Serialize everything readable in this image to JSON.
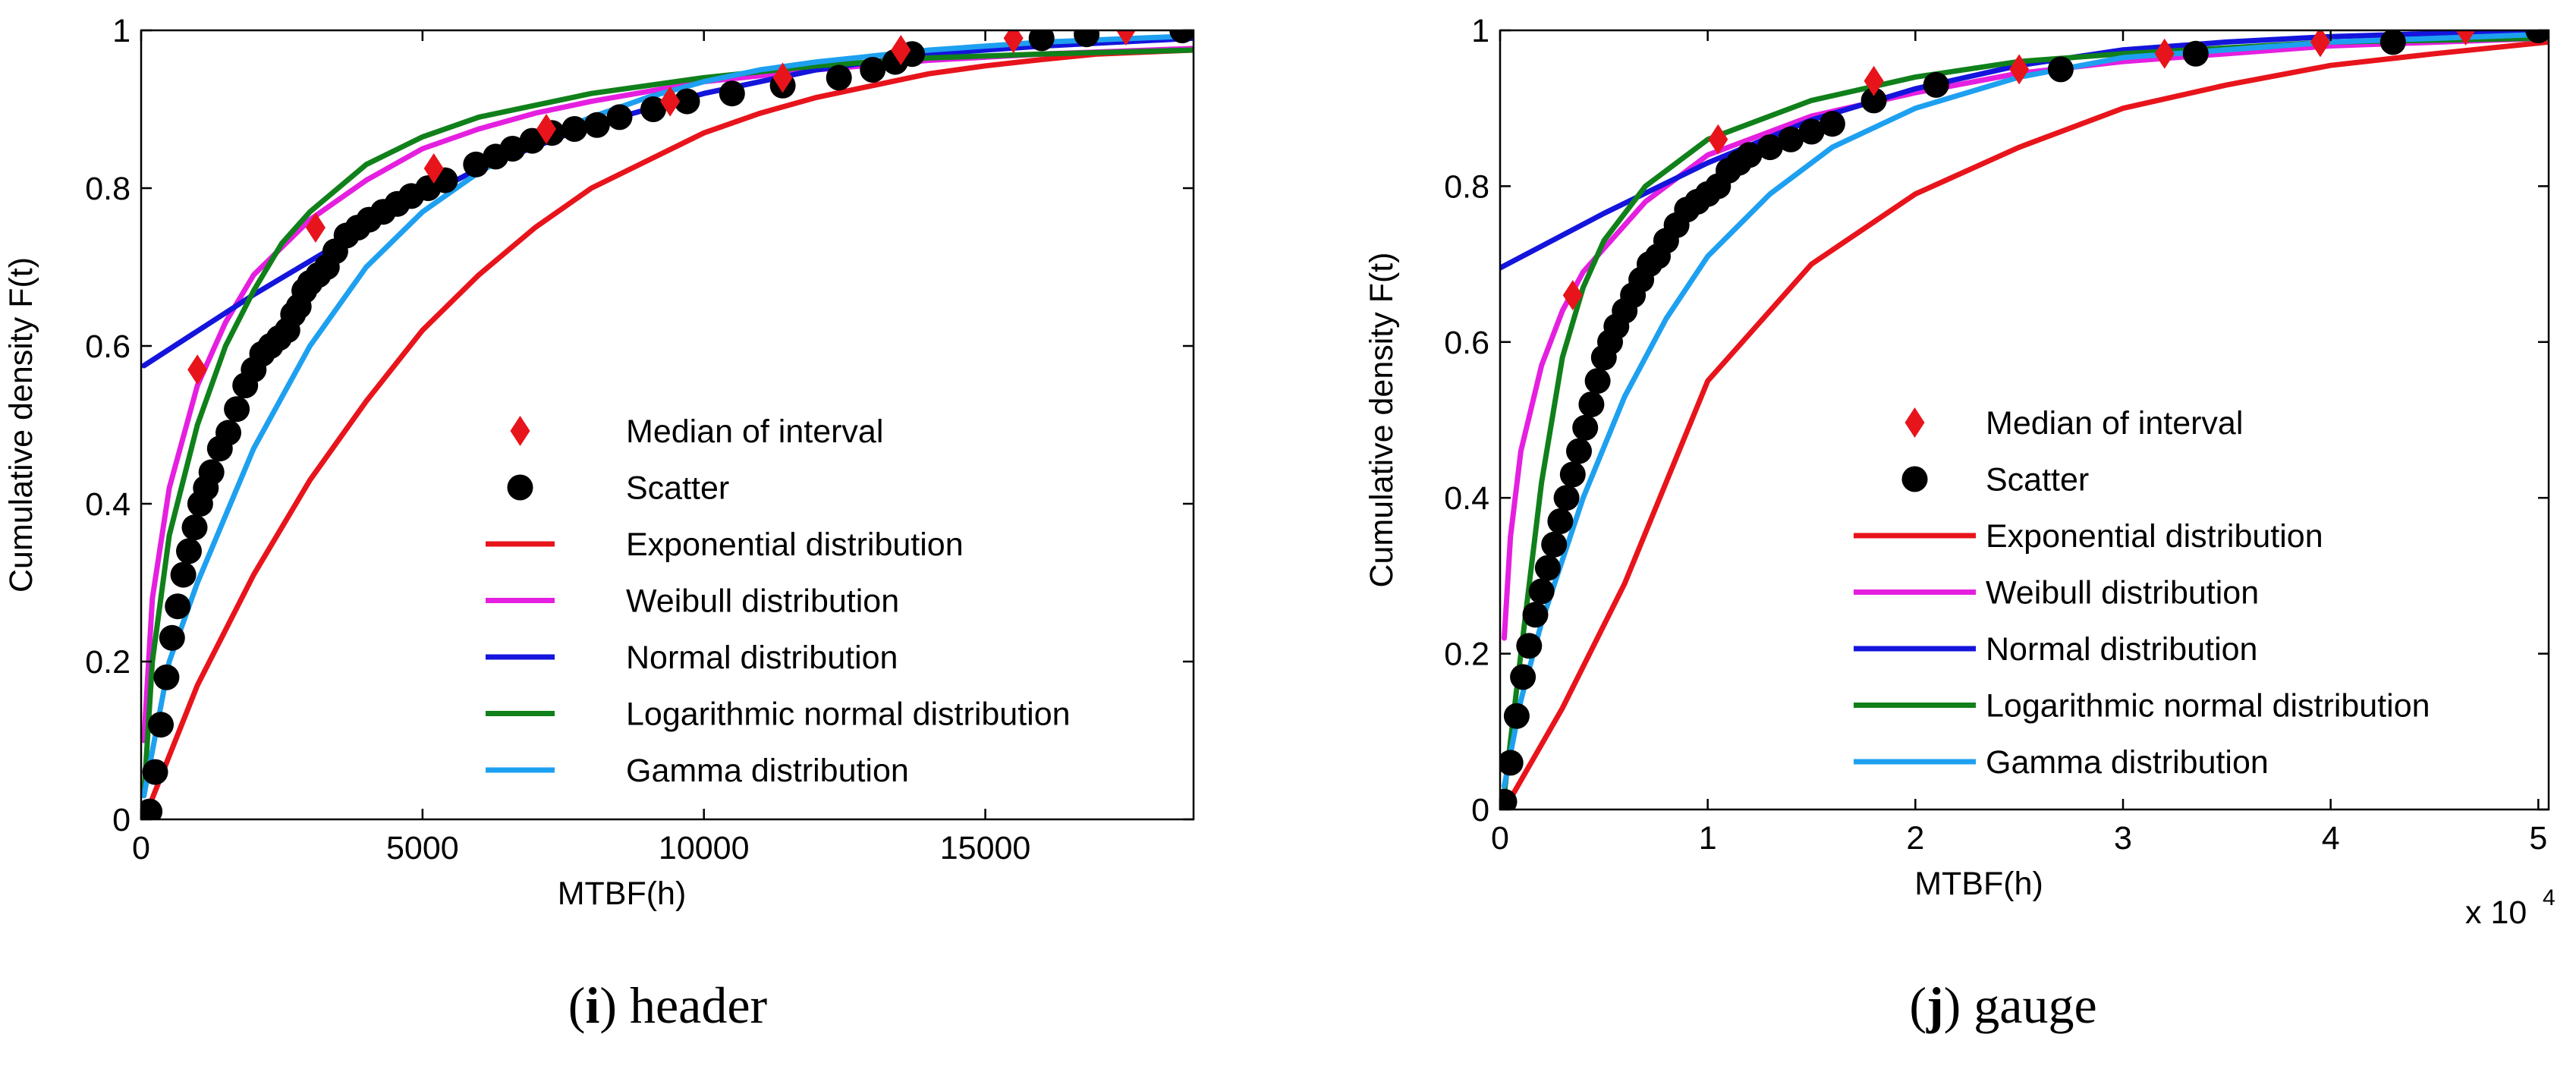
{
  "chart_data": [
    {
      "type": "line",
      "panel_label": "i",
      "panel_name": "header",
      "xlabel": "MTBF(h)",
      "ylabel": "Cumulative density F(t)",
      "x_exponent": "",
      "xlim": [
        0,
        18700
      ],
      "ylim": [
        0,
        1
      ],
      "xticks": [
        0,
        5000,
        10000,
        15000
      ],
      "xtick_labels": [
        "0",
        "5000",
        "10000",
        "15000"
      ],
      "yticks": [
        0,
        0.2,
        0.4,
        0.6,
        0.8,
        1
      ],
      "ytick_labels": [
        "0",
        "0.2",
        "0.4",
        "0.6",
        "0.8",
        "1"
      ],
      "legend": [
        {
          "label": "Median of interval",
          "kind": "median",
          "color": "#e8141b"
        },
        {
          "label": "Scatter",
          "kind": "scatter",
          "color": "#000000"
        },
        {
          "label": "Exponential distribution",
          "kind": "line",
          "color": "#e8141b"
        },
        {
          "label": "Weibull distribution",
          "kind": "line",
          "color": "#e51fe0"
        },
        {
          "label": "Normal distribution",
          "kind": "line",
          "color": "#1414dc"
        },
        {
          "label": "Logarithmic normal distribution",
          "kind": "line",
          "color": "#10801a"
        },
        {
          "label": "Gamma distribution",
          "kind": "line",
          "color": "#1ea0f0"
        }
      ],
      "series": [
        {
          "name": "Exponential distribution",
          "color": "#e8141b",
          "x": [
            50,
            1000,
            2000,
            3000,
            4000,
            5000,
            6000,
            7000,
            8000,
            9000,
            10000,
            11000,
            12000,
            13000,
            14000,
            15000,
            16000,
            17000,
            18700
          ],
          "y": [
            0.0,
            0.17,
            0.31,
            0.43,
            0.53,
            0.62,
            0.69,
            0.75,
            0.8,
            0.835,
            0.87,
            0.895,
            0.915,
            0.93,
            0.945,
            0.955,
            0.963,
            0.97,
            0.975
          ]
        },
        {
          "name": "Weibull distribution",
          "color": "#e51fe0",
          "x": [
            50,
            200,
            500,
            1000,
            1500,
            2000,
            3000,
            4000,
            5000,
            6000,
            7000,
            8000,
            10000,
            12000,
            14000,
            16000,
            18700
          ],
          "y": [
            0.1,
            0.28,
            0.42,
            0.55,
            0.63,
            0.69,
            0.76,
            0.81,
            0.85,
            0.875,
            0.895,
            0.91,
            0.935,
            0.95,
            0.962,
            0.97,
            0.977
          ]
        },
        {
          "name": "Normal distribution",
          "color": "#1414dc",
          "x": [
            50,
            2000,
            4000,
            6000,
            8000,
            10000,
            12000,
            14000,
            16000,
            18700
          ],
          "y": [
            0.575,
            0.665,
            0.75,
            0.825,
            0.88,
            0.92,
            0.95,
            0.97,
            0.98,
            0.99
          ]
        },
        {
          "name": "Logarithmic normal distribution",
          "color": "#10801a",
          "x": [
            50,
            200,
            500,
            1000,
            1500,
            2000,
            2500,
            3000,
            4000,
            5000,
            6000,
            7000,
            8000,
            10000,
            12000,
            14000,
            16000,
            18700
          ],
          "y": [
            0.03,
            0.2,
            0.36,
            0.5,
            0.6,
            0.67,
            0.73,
            0.77,
            0.83,
            0.865,
            0.89,
            0.905,
            0.92,
            0.94,
            0.955,
            0.965,
            0.97,
            0.975
          ]
        },
        {
          "name": "Gamma distribution",
          "color": "#1ea0f0",
          "x": [
            50,
            500,
            1000,
            2000,
            3000,
            4000,
            5000,
            6000,
            7000,
            8000,
            9000,
            10000,
            11000,
            12000,
            14000,
            16000,
            18700
          ],
          "y": [
            0.03,
            0.2,
            0.3,
            0.47,
            0.6,
            0.7,
            0.77,
            0.82,
            0.86,
            0.89,
            0.915,
            0.935,
            0.95,
            0.96,
            0.975,
            0.985,
            0.993
          ]
        }
      ],
      "scatter": {
        "name": "Scatter",
        "x": [
          150,
          250,
          350,
          450,
          550,
          650,
          750,
          850,
          950,
          1050,
          1150,
          1250,
          1400,
          1550,
          1700,
          1850,
          2000,
          2150,
          2300,
          2450,
          2600,
          2700,
          2800,
          2900,
          3000,
          3150,
          3300,
          3450,
          3650,
          3850,
          4050,
          4300,
          4550,
          4800,
          5100,
          5400,
          5950,
          6300,
          6600,
          6950,
          7300,
          7700,
          8100,
          8500,
          9100,
          9700,
          10500,
          11400,
          12400,
          13000,
          13400,
          13700,
          16000,
          16800,
          18500
        ],
        "y": [
          0.01,
          0.06,
          0.12,
          0.18,
          0.23,
          0.27,
          0.31,
          0.34,
          0.37,
          0.4,
          0.42,
          0.44,
          0.47,
          0.49,
          0.52,
          0.55,
          0.57,
          0.59,
          0.6,
          0.61,
          0.62,
          0.64,
          0.65,
          0.67,
          0.68,
          0.69,
          0.7,
          0.72,
          0.74,
          0.75,
          0.76,
          0.77,
          0.78,
          0.79,
          0.8,
          0.81,
          0.83,
          0.84,
          0.85,
          0.86,
          0.87,
          0.875,
          0.88,
          0.89,
          0.9,
          0.91,
          0.92,
          0.93,
          0.94,
          0.95,
          0.96,
          0.97,
          0.99,
          0.995,
          1.0
        ]
      },
      "medians": {
        "name": "Median of interval",
        "x": [
          1000,
          3100,
          5200,
          7200,
          9400,
          11400,
          13500,
          15500,
          17500
        ],
        "y": [
          0.57,
          0.75,
          0.825,
          0.875,
          0.91,
          0.94,
          0.975,
          0.99,
          1.0
        ]
      }
    },
    {
      "type": "line",
      "panel_label": "j",
      "panel_name": "gauge",
      "xlabel": "MTBF(h)",
      "ylabel": "Cumulative density F(t)",
      "x_exponent": "x 10",
      "x_exponent_power": "4",
      "xlim": [
        0,
        5.05
      ],
      "ylim": [
        0,
        1
      ],
      "xticks": [
        0,
        1,
        2,
        3,
        4,
        5
      ],
      "xtick_labels": [
        "0",
        "1",
        "2",
        "3",
        "4",
        "5"
      ],
      "yticks": [
        0,
        0.2,
        0.4,
        0.6,
        0.8,
        1
      ],
      "ytick_labels": [
        "0",
        "0.2",
        "0.4",
        "0.6",
        "0.8",
        "1"
      ],
      "legend": [
        {
          "label": "Median of interval",
          "kind": "median",
          "color": "#e8141b"
        },
        {
          "label": "Scatter",
          "kind": "scatter",
          "color": "#000000"
        },
        {
          "label": "Exponential distribution",
          "kind": "line",
          "color": "#e8141b"
        },
        {
          "label": "Weibull distribution",
          "kind": "line",
          "color": "#e51fe0"
        },
        {
          "label": "Normal distribution",
          "kind": "line",
          "color": "#1414dc"
        },
        {
          "label": "Logarithmic normal distribution",
          "kind": "line",
          "color": "#10801a"
        },
        {
          "label": "Gamma distribution",
          "kind": "line",
          "color": "#1ea0f0"
        }
      ],
      "series": [
        {
          "name": "Exponential distribution",
          "color": "#e8141b",
          "x": [
            0.02,
            0.3,
            0.6,
            1.0,
            1.5,
            2.0,
            2.5,
            3.0,
            3.5,
            4.0,
            4.5,
            5.05
          ],
          "y": [
            0.0,
            0.13,
            0.29,
            0.55,
            0.7,
            0.79,
            0.85,
            0.9,
            0.93,
            0.955,
            0.97,
            0.985
          ]
        },
        {
          "name": "Weibull distribution",
          "color": "#e51fe0",
          "x": [
            0.02,
            0.05,
            0.1,
            0.2,
            0.3,
            0.4,
            0.5,
            0.7,
            1.0,
            1.5,
            2.0,
            2.5,
            3.0,
            4.0,
            5.05
          ],
          "y": [
            0.22,
            0.35,
            0.46,
            0.57,
            0.64,
            0.69,
            0.72,
            0.78,
            0.84,
            0.89,
            0.92,
            0.945,
            0.96,
            0.98,
            0.99
          ]
        },
        {
          "name": "Normal distribution",
          "color": "#1414dc",
          "x": [
            0.0,
            0.5,
            1.0,
            1.5,
            2.0,
            2.5,
            3.0,
            3.5,
            4.0,
            4.5,
            5.05
          ],
          "y": [
            0.695,
            0.765,
            0.83,
            0.885,
            0.925,
            0.955,
            0.975,
            0.985,
            0.992,
            0.996,
            0.998
          ]
        },
        {
          "name": "Logarithmic normal distribution",
          "color": "#10801a",
          "x": [
            0.02,
            0.1,
            0.2,
            0.3,
            0.4,
            0.5,
            0.7,
            1.0,
            1.5,
            2.0,
            2.5,
            3.0,
            4.0,
            5.05
          ],
          "y": [
            0.02,
            0.2,
            0.42,
            0.58,
            0.67,
            0.73,
            0.8,
            0.86,
            0.91,
            0.94,
            0.96,
            0.97,
            0.985,
            0.99
          ]
        },
        {
          "name": "Gamma distribution",
          "color": "#1ea0f0",
          "x": [
            0.02,
            0.1,
            0.2,
            0.4,
            0.6,
            0.8,
            1.0,
            1.3,
            1.6,
            2.0,
            2.5,
            3.0,
            4.0,
            5.05
          ],
          "y": [
            0.03,
            0.14,
            0.24,
            0.4,
            0.53,
            0.63,
            0.71,
            0.79,
            0.85,
            0.9,
            0.94,
            0.965,
            0.985,
            0.995
          ]
        }
      ],
      "scatter": {
        "name": "Scatter",
        "x": [
          0.02,
          0.05,
          0.08,
          0.11,
          0.14,
          0.17,
          0.2,
          0.23,
          0.26,
          0.29,
          0.32,
          0.35,
          0.38,
          0.41,
          0.44,
          0.47,
          0.5,
          0.53,
          0.56,
          0.6,
          0.64,
          0.68,
          0.72,
          0.76,
          0.8,
          0.85,
          0.9,
          0.95,
          1.0,
          1.05,
          1.1,
          1.15,
          1.2,
          1.3,
          1.4,
          1.5,
          1.6,
          1.8,
          2.1,
          2.7,
          3.35,
          4.3,
          5.0
        ],
        "y": [
          0.01,
          0.06,
          0.12,
          0.17,
          0.21,
          0.25,
          0.28,
          0.31,
          0.34,
          0.37,
          0.4,
          0.43,
          0.46,
          0.49,
          0.52,
          0.55,
          0.58,
          0.6,
          0.62,
          0.64,
          0.66,
          0.68,
          0.7,
          0.71,
          0.73,
          0.75,
          0.77,
          0.78,
          0.79,
          0.8,
          0.82,
          0.83,
          0.84,
          0.85,
          0.86,
          0.87,
          0.88,
          0.91,
          0.93,
          0.95,
          0.97,
          0.985,
          1.0
        ]
      },
      "medians": {
        "name": "Median of interval",
        "x": [
          0.35,
          1.05,
          1.8,
          2.5,
          3.2,
          3.95,
          4.65
        ],
        "y": [
          0.66,
          0.86,
          0.935,
          0.95,
          0.97,
          0.985,
          1.0
        ]
      }
    }
  ]
}
